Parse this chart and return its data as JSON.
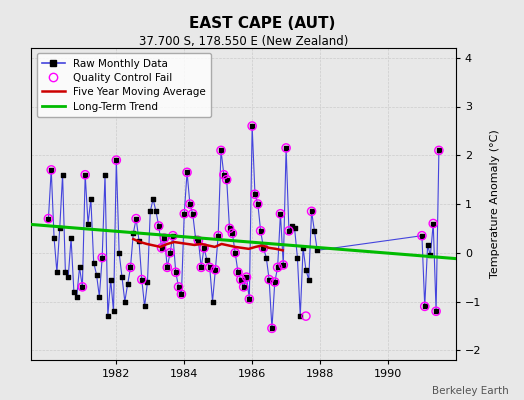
{
  "title": "EAST CAPE (AUT)",
  "subtitle": "37.700 S, 178.550 E (New Zealand)",
  "ylabel": "Temperature Anomaly (°C)",
  "credit": "Berkeley Earth",
  "xlim": [
    1979.5,
    1992.0
  ],
  "ylim": [
    -2.2,
    4.2
  ],
  "yticks": [
    -2,
    -1,
    0,
    1,
    2,
    3,
    4
  ],
  "xticks": [
    1982,
    1984,
    1986,
    1988,
    1990
  ],
  "background_color": "#e8e8e8",
  "plot_bg_color": "#e8e8e8",
  "raw_color": "#4444dd",
  "marker_color": "#000000",
  "qc_color": "#ff00ff",
  "moving_avg_color": "#cc0000",
  "trend_color": "#00bb00",
  "raw_data_x": [
    1980.0,
    1980.083,
    1980.167,
    1980.25,
    1980.333,
    1980.417,
    1980.5,
    1980.583,
    1980.667,
    1980.75,
    1980.833,
    1980.917,
    1981.0,
    1981.083,
    1981.167,
    1981.25,
    1981.333,
    1981.417,
    1981.5,
    1981.583,
    1981.667,
    1981.75,
    1981.833,
    1981.917,
    1982.0,
    1982.083,
    1982.167,
    1982.25,
    1982.333,
    1982.417,
    1982.5,
    1982.583,
    1982.667,
    1982.75,
    1982.833,
    1982.917,
    1983.0,
    1983.083,
    1983.167,
    1983.25,
    1983.333,
    1983.417,
    1983.5,
    1983.583,
    1983.667,
    1983.75,
    1983.833,
    1983.917,
    1984.0,
    1984.083,
    1984.167,
    1984.25,
    1984.333,
    1984.417,
    1984.5,
    1984.583,
    1984.667,
    1984.75,
    1984.833,
    1984.917,
    1985.0,
    1985.083,
    1985.167,
    1985.25,
    1985.333,
    1985.417,
    1985.5,
    1985.583,
    1985.667,
    1985.75,
    1985.833,
    1985.917,
    1986.0,
    1986.083,
    1986.167,
    1986.25,
    1986.333,
    1986.417,
    1986.5,
    1986.583,
    1986.667,
    1986.75,
    1986.833,
    1986.917,
    1987.0,
    1987.083,
    1987.167,
    1987.25,
    1987.333,
    1987.417,
    1987.5,
    1987.583,
    1987.667,
    1987.75,
    1987.833,
    1987.917,
    1991.0,
    1991.083,
    1991.167,
    1991.25,
    1991.333,
    1991.417,
    1991.5
  ],
  "raw_data_y": [
    0.7,
    1.7,
    0.3,
    -0.4,
    0.5,
    1.6,
    -0.4,
    -0.5,
    0.3,
    -0.8,
    -0.9,
    -0.3,
    -0.7,
    1.6,
    0.6,
    1.1,
    -0.2,
    -0.45,
    -0.9,
    -0.1,
    1.6,
    -1.3,
    -0.55,
    -1.2,
    1.9,
    0.0,
    -0.5,
    -1.0,
    -0.65,
    -0.3,
    0.4,
    0.7,
    0.25,
    -0.55,
    -1.1,
    -0.6,
    0.85,
    1.1,
    0.85,
    0.55,
    0.1,
    0.3,
    -0.3,
    0.0,
    0.35,
    -0.4,
    -0.7,
    -0.85,
    0.8,
    1.65,
    1.0,
    0.8,
    0.3,
    0.25,
    -0.3,
    0.1,
    -0.15,
    -0.3,
    -1.0,
    -0.35,
    0.35,
    2.1,
    1.6,
    1.5,
    0.5,
    0.4,
    0.0,
    -0.4,
    -0.55,
    -0.7,
    -0.5,
    -0.95,
    2.6,
    1.2,
    1.0,
    0.45,
    0.1,
    -0.1,
    -0.55,
    -1.55,
    -0.6,
    -0.3,
    0.8,
    -0.25,
    2.15,
    0.45,
    0.55,
    0.5,
    -0.1,
    -1.3,
    0.1,
    -0.35,
    -0.55,
    0.85,
    0.45,
    0.05,
    0.35,
    -1.1,
    0.15,
    -0.05,
    0.6,
    -1.2,
    2.1
  ],
  "qc_x": [
    1980.0,
    1980.083,
    1981.0,
    1981.083,
    1981.583,
    1982.0,
    1982.417,
    1982.583,
    1982.75,
    1983.25,
    1983.333,
    1983.417,
    1983.5,
    1983.583,
    1983.667,
    1983.75,
    1983.833,
    1983.917,
    1984.0,
    1984.083,
    1984.167,
    1984.25,
    1984.417,
    1984.5,
    1984.583,
    1984.75,
    1984.917,
    1985.0,
    1985.083,
    1985.167,
    1985.25,
    1985.333,
    1985.417,
    1985.5,
    1985.583,
    1985.667,
    1985.75,
    1985.833,
    1985.917,
    1986.0,
    1986.083,
    1986.167,
    1986.25,
    1986.333,
    1986.5,
    1986.583,
    1986.667,
    1986.75,
    1986.833,
    1986.917,
    1987.0,
    1987.083,
    1987.583,
    1987.75,
    1991.0,
    1991.083,
    1991.333,
    1991.417,
    1991.5
  ],
  "qc_y": [
    0.7,
    1.7,
    -0.7,
    1.6,
    -0.1,
    1.9,
    -0.3,
    0.7,
    -0.55,
    0.55,
    0.1,
    0.3,
    -0.3,
    0.0,
    0.35,
    -0.4,
    -0.7,
    -0.85,
    0.8,
    1.65,
    1.0,
    0.8,
    0.25,
    -0.3,
    0.1,
    -0.3,
    -0.35,
    0.35,
    2.1,
    1.6,
    1.5,
    0.5,
    0.4,
    0.0,
    -0.4,
    -0.55,
    -0.7,
    -0.5,
    -0.95,
    2.6,
    1.2,
    1.0,
    0.45,
    0.1,
    -0.55,
    -1.55,
    -0.6,
    -0.3,
    0.8,
    -0.25,
    2.15,
    0.45,
    -1.3,
    0.85,
    0.35,
    -1.1,
    0.6,
    -1.2,
    2.1
  ],
  "moving_avg_x": [
    1982.5,
    1982.7,
    1982.9,
    1983.1,
    1983.3,
    1983.5,
    1983.7,
    1983.9,
    1984.1,
    1984.3,
    1984.5,
    1984.7,
    1984.9,
    1985.1,
    1985.3,
    1985.5,
    1985.7,
    1985.9,
    1986.1,
    1986.3,
    1986.5,
    1986.7,
    1986.9
  ],
  "moving_avg_y": [
    0.28,
    0.22,
    0.18,
    0.15,
    0.12,
    0.18,
    0.22,
    0.2,
    0.18,
    0.16,
    0.18,
    0.15,
    0.12,
    0.18,
    0.15,
    0.12,
    0.1,
    0.08,
    0.12,
    0.15,
    0.1,
    0.08,
    0.05
  ],
  "trend_x": [
    1979.5,
    1992.0
  ],
  "trend_y": [
    0.58,
    -0.12
  ]
}
